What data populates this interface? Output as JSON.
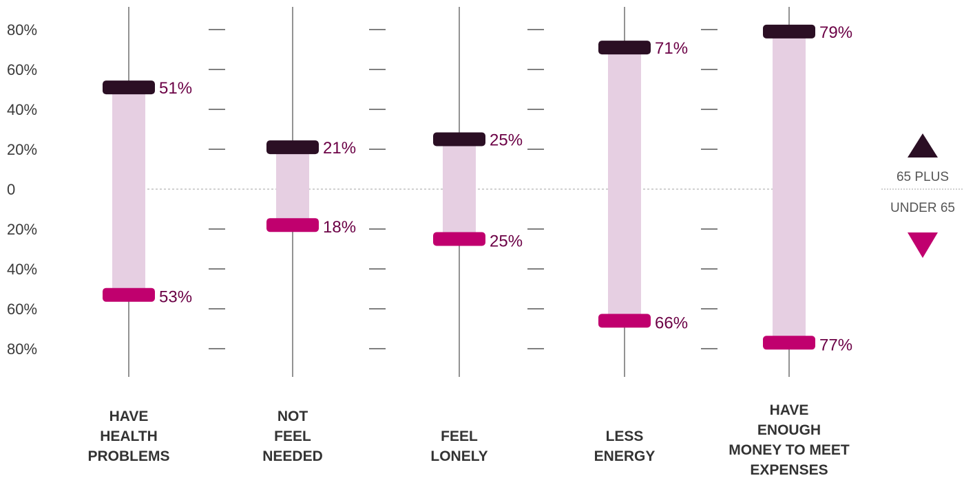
{
  "chart_data": {
    "type": "range",
    "y_ticks": [
      "80%",
      "60%",
      "40%",
      "20%",
      "0",
      "20%",
      "40%",
      "60%",
      "80%"
    ],
    "ylim": [
      -80,
      80
    ],
    "categories": [
      [
        "HAVE",
        "HEALTH",
        "PROBLEMS"
      ],
      [
        "NOT",
        "FEEL",
        "NEEDED"
      ],
      [
        "FEEL",
        "LONELY"
      ],
      [
        "LESS",
        "ENERGY"
      ],
      [
        "HAVE",
        "ENOUGH",
        "MONEY TO MEET",
        "EXPENSES"
      ]
    ],
    "series": [
      {
        "name": "65 PLUS",
        "values": [
          51,
          21,
          25,
          71,
          79
        ],
        "labels": [
          "51%",
          "21%",
          "25%",
          "71%",
          "79%"
        ]
      },
      {
        "name": "UNDER 65",
        "values": [
          53,
          18,
          25,
          66,
          77
        ],
        "labels": [
          "53%",
          "18%",
          "25%",
          "66%",
          "77%"
        ]
      }
    ],
    "legend": {
      "placement": "right"
    },
    "colors": {
      "plus65": "#2b0f24",
      "under65": "#c0006e",
      "range": "#e6cfe2",
      "label": "#6b0045",
      "axis": "#777777",
      "zero_line": "#b5b5b5"
    }
  }
}
